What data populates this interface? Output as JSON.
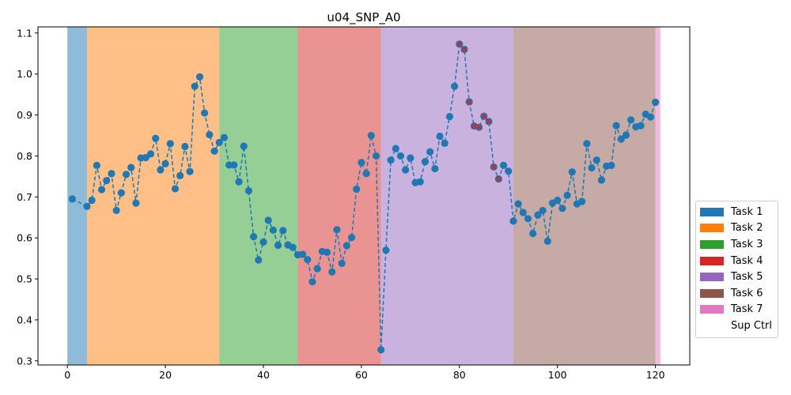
{
  "chart_data": {
    "type": "line",
    "title": "u04_SNP_A0",
    "xlabel": "",
    "ylabel": "",
    "xlim": [
      -6,
      127
    ],
    "ylim": [
      0.29,
      1.115
    ],
    "xticks": [
      0,
      20,
      40,
      60,
      80,
      100,
      120
    ],
    "yticks": [
      0.3,
      0.4,
      0.5,
      0.6,
      0.7,
      0.8,
      0.9,
      1.0,
      1.1
    ],
    "grid": false,
    "legend_position": "right",
    "line_color": "#1f77b4",
    "marked_point_color": "#d62728",
    "task_regions": [
      {
        "task": "Task 1",
        "start": 0,
        "end": 4,
        "color": "#1f77b4"
      },
      {
        "task": "Task 2",
        "start": 4,
        "end": 31,
        "color": "#ff7f0e"
      },
      {
        "task": "Task 3",
        "start": 31,
        "end": 47,
        "color": "#2ca02c"
      },
      {
        "task": "Task 4",
        "start": 47,
        "end": 64,
        "color": "#d62728"
      },
      {
        "task": "Task 5",
        "start": 64,
        "end": 91,
        "color": "#9467bd"
      },
      {
        "task": "Task 6",
        "start": 91,
        "end": 120,
        "color": "#8c564b"
      },
      {
        "task": "Task 7",
        "start": 120,
        "end": 121,
        "color": "#e377c2"
      }
    ],
    "legend": [
      {
        "label": "Task 1",
        "color": "#1f77b4"
      },
      {
        "label": "Task 2",
        "color": "#ff7f0e"
      },
      {
        "label": "Task 3",
        "color": "#2ca02c"
      },
      {
        "label": "Task 4",
        "color": "#d62728"
      },
      {
        "label": "Task 5",
        "color": "#9467bd"
      },
      {
        "label": "Task 6",
        "color": "#8c564b"
      },
      {
        "label": "Task 7",
        "color": "#e377c2"
      },
      {
        "label": "Sup Ctrl",
        "color": "#ffffff"
      }
    ],
    "series": [
      {
        "x": [
          1,
          4,
          5,
          6,
          7,
          8,
          9,
          10,
          11,
          12,
          13,
          14,
          15,
          16,
          17,
          18,
          19,
          20,
          21,
          22,
          23,
          24,
          25,
          26,
          27,
          28,
          29,
          30,
          31,
          32,
          33,
          34,
          35,
          36,
          37,
          38,
          39,
          40,
          41,
          42,
          43,
          44,
          45,
          46,
          47,
          48,
          49,
          50,
          51,
          52,
          53,
          54,
          55,
          56,
          57,
          58,
          59,
          60,
          61,
          62,
          63,
          64,
          65,
          66,
          67,
          68,
          69,
          70,
          71,
          72,
          73,
          74,
          75,
          76,
          77,
          78,
          79,
          80,
          81,
          82,
          83,
          84,
          85,
          86,
          87,
          88,
          89,
          90,
          91,
          92,
          93,
          94,
          95,
          96,
          97,
          98,
          99,
          100,
          101,
          102,
          103,
          104,
          105,
          106,
          107,
          108,
          109,
          110,
          111,
          112,
          113,
          114,
          115,
          116,
          117,
          118,
          119,
          120
        ],
        "y": [
          0.695,
          0.677,
          0.692,
          0.777,
          0.718,
          0.74,
          0.757,
          0.667,
          0.71,
          0.755,
          0.772,
          0.685,
          0.795,
          0.796,
          0.805,
          0.843,
          0.766,
          0.781,
          0.83,
          0.72,
          0.752,
          0.823,
          0.762,
          0.97,
          0.993,
          0.905,
          0.852,
          0.812,
          0.833,
          0.845,
          0.778,
          0.778,
          0.737,
          0.824,
          0.715,
          0.603,
          0.546,
          0.59,
          0.643,
          0.619,
          0.582,
          0.618,
          0.583,
          0.577,
          0.559,
          0.56,
          0.547,
          0.493,
          0.525,
          0.567,
          0.565,
          0.517,
          0.62,
          0.538,
          0.581,
          0.601,
          0.719,
          0.784,
          0.757,
          0.85,
          0.8,
          0.327,
          0.57,
          0.79,
          0.818,
          0.8,
          0.766,
          0.795,
          0.735,
          0.737,
          0.786,
          0.81,
          0.769,
          0.848,
          0.831,
          0.896,
          0.97,
          1.073,
          1.06,
          0.932,
          0.873,
          0.87,
          0.897,
          0.884,
          0.773,
          0.744,
          0.777,
          0.763,
          0.641,
          0.683,
          0.662,
          0.647,
          0.611,
          0.656,
          0.667,
          0.592,
          0.685,
          0.692,
          0.672,
          0.704,
          0.761,
          0.683,
          0.689,
          0.83,
          0.771,
          0.79,
          0.741,
          0.775,
          0.777,
          0.874,
          0.841,
          0.851,
          0.888,
          0.871,
          0.874,
          0.902,
          0.895,
          0.931
        ],
        "marked_x": [
          80,
          81,
          82,
          83,
          84,
          85,
          86,
          87,
          88
        ]
      }
    ]
  }
}
